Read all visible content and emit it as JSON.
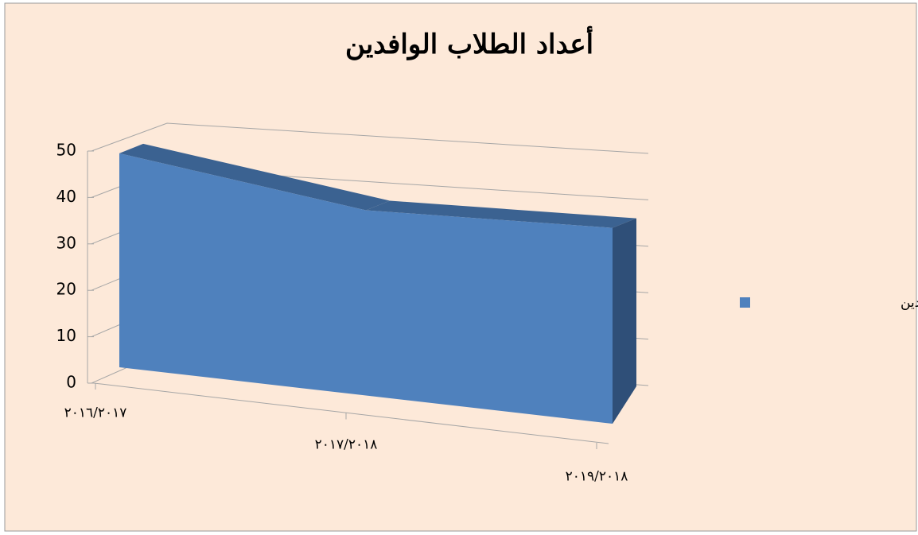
{
  "chart_data": {
    "type": "area3d",
    "title": "أعداد الطلاب الوافدين",
    "categories": [
      "٢٠١٦/٢٠١٧",
      "٢٠١٧/٢٠١٨",
      "٢٠١٩/٢٠١٨"
    ],
    "series": [
      {
        "name": "أعداد الطلاب الوافدين",
        "color": "#4f81bd",
        "values": [
          48,
          38,
          37
        ]
      }
    ],
    "ylim": [
      0,
      50
    ],
    "yticks": [
      0,
      10,
      20,
      30,
      40,
      50
    ],
    "grid": true,
    "legend": "right"
  }
}
